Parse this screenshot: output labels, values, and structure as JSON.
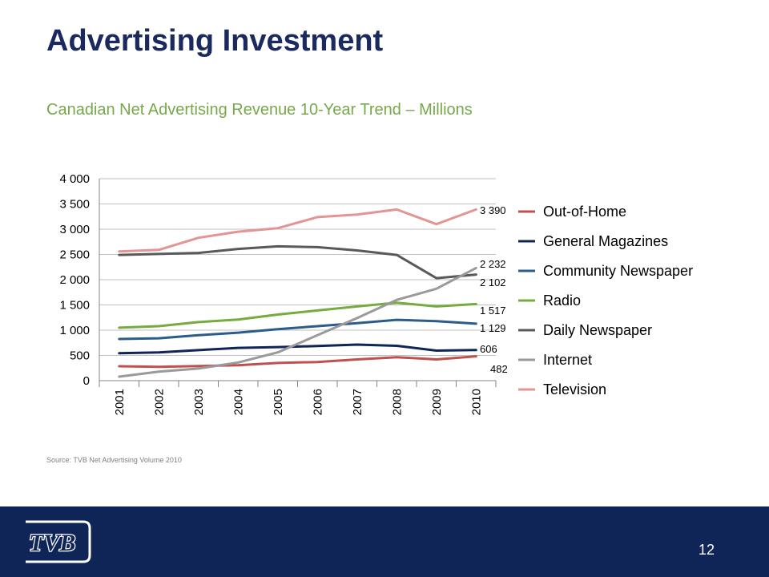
{
  "slide": {
    "title": "Advertising Investment",
    "subtitle": "Canadian Net Advertising Revenue 10-Year Trend – Millions",
    "source": "Source: TVB Net Advertising Volume 2010",
    "page_number": "12",
    "logo_text": "TVB"
  },
  "colors": {
    "title": "#1b2a5e",
    "subtitle": "#77a84a",
    "footer": "#0f2457"
  },
  "chart_data": {
    "type": "line",
    "x": [
      "2001",
      "2002",
      "2003",
      "2004",
      "2005",
      "2006",
      "2007",
      "2008",
      "2009",
      "2010"
    ],
    "ylim": [
      0,
      4000
    ],
    "yticks": [
      0,
      500,
      1000,
      1500,
      2000,
      2500,
      3000,
      3500,
      4000
    ],
    "ytick_labels": [
      "0",
      "500",
      "1 000",
      "1 500",
      "2 000",
      "2 500",
      "3 000",
      "3 500",
      "4 000"
    ],
    "grid": true,
    "legend_position": "right",
    "series": [
      {
        "name": "Out-of-Home",
        "color": "#c0504d",
        "values": [
          285,
          275,
          290,
          305,
          350,
          370,
          420,
          465,
          420,
          482
        ],
        "end_label": "482"
      },
      {
        "name": "General Magazines",
        "color": "#0f2457",
        "values": [
          545,
          560,
          605,
          650,
          665,
          685,
          715,
          690,
          595,
          606
        ],
        "end_label": "606"
      },
      {
        "name": "Community Newspaper",
        "color": "#2c5c8a",
        "values": [
          825,
          840,
          900,
          950,
          1020,
          1080,
          1140,
          1205,
          1180,
          1129
        ],
        "end_label": "1 129"
      },
      {
        "name": "Radio",
        "color": "#77ab3f",
        "values": [
          1050,
          1080,
          1160,
          1210,
          1310,
          1390,
          1470,
          1545,
          1470,
          1517
        ],
        "end_label": "1 517"
      },
      {
        "name": "Daily Newspaper",
        "color": "#595959",
        "values": [
          2490,
          2510,
          2530,
          2610,
          2660,
          2645,
          2580,
          2490,
          2030,
          2102
        ],
        "end_label": "2 102"
      },
      {
        "name": "Internet",
        "color": "#9a9a9a",
        "values": [
          80,
          180,
          240,
          360,
          560,
          900,
          1240,
          1600,
          1820,
          2232
        ],
        "end_label": "2 232"
      },
      {
        "name": "Television",
        "color": "#e39594",
        "values": [
          2560,
          2590,
          2830,
          2950,
          3020,
          3240,
          3290,
          3390,
          3100,
          3390
        ],
        "end_label": "3 390"
      }
    ]
  }
}
